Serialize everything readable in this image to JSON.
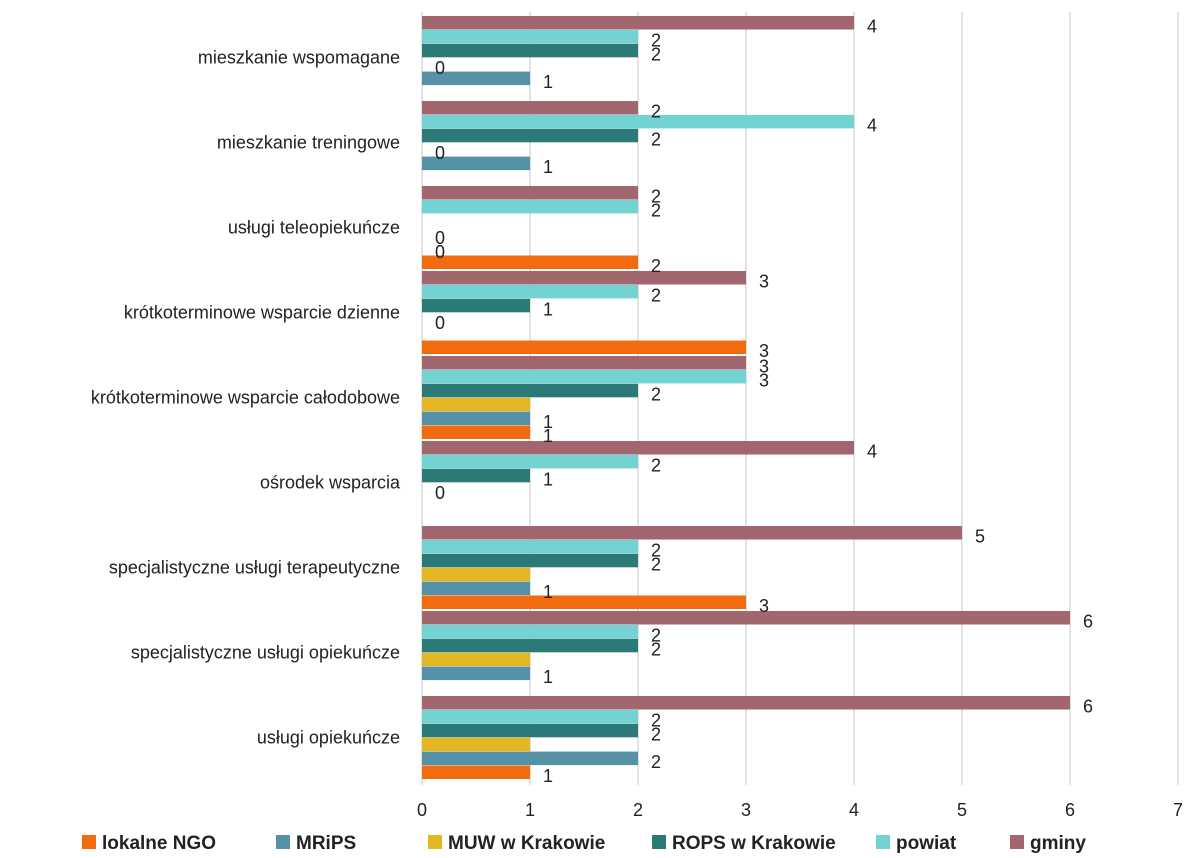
{
  "chart_data": {
    "type": "bar",
    "orientation": "horizontal",
    "categories": [
      "mieszkanie wspomagane",
      "mieszkanie treningowe",
      "usługi teleopiekuńcze",
      "krótkoterminowe wsparcie dzienne",
      "krótkoterminowe wsparcie całodobowe",
      "ośrodek wsparcia",
      "specjalistyczne usługi terapeutyczne",
      "specjalistyczne usługi opiekuńcze",
      "usługi opiekuńcze"
    ],
    "series": [
      {
        "name": "lokalne NGO",
        "color": "#F26B0F",
        "values": [
          null,
          null,
          2,
          3,
          1,
          null,
          3,
          null,
          1
        ]
      },
      {
        "name": "MRiPS",
        "color": "#5592A8",
        "values": [
          1,
          1,
          0,
          null,
          1,
          null,
          1,
          1,
          2
        ]
      },
      {
        "name": "MUW w Krakowie",
        "color": "#E4B722",
        "values": [
          0,
          0,
          0,
          0,
          1,
          0,
          1,
          1,
          1
        ]
      },
      {
        "name": "ROPS w Krakowie",
        "color": "#2B7A78",
        "values": [
          2,
          2,
          null,
          1,
          2,
          1,
          2,
          2,
          2
        ]
      },
      {
        "name": "powiat",
        "color": "#73D2D2",
        "values": [
          2,
          4,
          2,
          2,
          3,
          2,
          2,
          2,
          2
        ]
      },
      {
        "name": "gminy",
        "color": "#A1666E",
        "values": [
          4,
          2,
          2,
          3,
          3,
          4,
          5,
          6,
          6
        ]
      }
    ],
    "visible_labels": {
      "lokalne NGO": [
        null,
        null,
        "2",
        "3",
        "1",
        null,
        "3",
        null,
        "1"
      ],
      "MRiPS": [
        "1",
        "1",
        "0",
        null,
        "1",
        null,
        "1",
        "1",
        "2"
      ],
      "MUW w Krakowie": [
        "0",
        "0",
        "0",
        "0",
        null,
        "0",
        null,
        null,
        null
      ],
      "ROPS w Krakowie": [
        "2",
        "2",
        null,
        "1",
        "2",
        "1",
        "2",
        "2",
        "2"
      ],
      "powiat": [
        "2",
        "4",
        "2",
        "2",
        "3",
        "2",
        "2",
        "2",
        "2"
      ],
      "gminy": [
        "4",
        "2",
        "2",
        "3",
        "3",
        "4",
        "5",
        "6",
        "6"
      ]
    },
    "xlim": [
      0,
      7
    ],
    "xticks": [
      "0",
      "1",
      "2",
      "3",
      "4",
      "5",
      "6",
      "7"
    ],
    "grid": "vertical",
    "legend": "bottom",
    "title": "",
    "xlabel": "",
    "ylabel": ""
  }
}
